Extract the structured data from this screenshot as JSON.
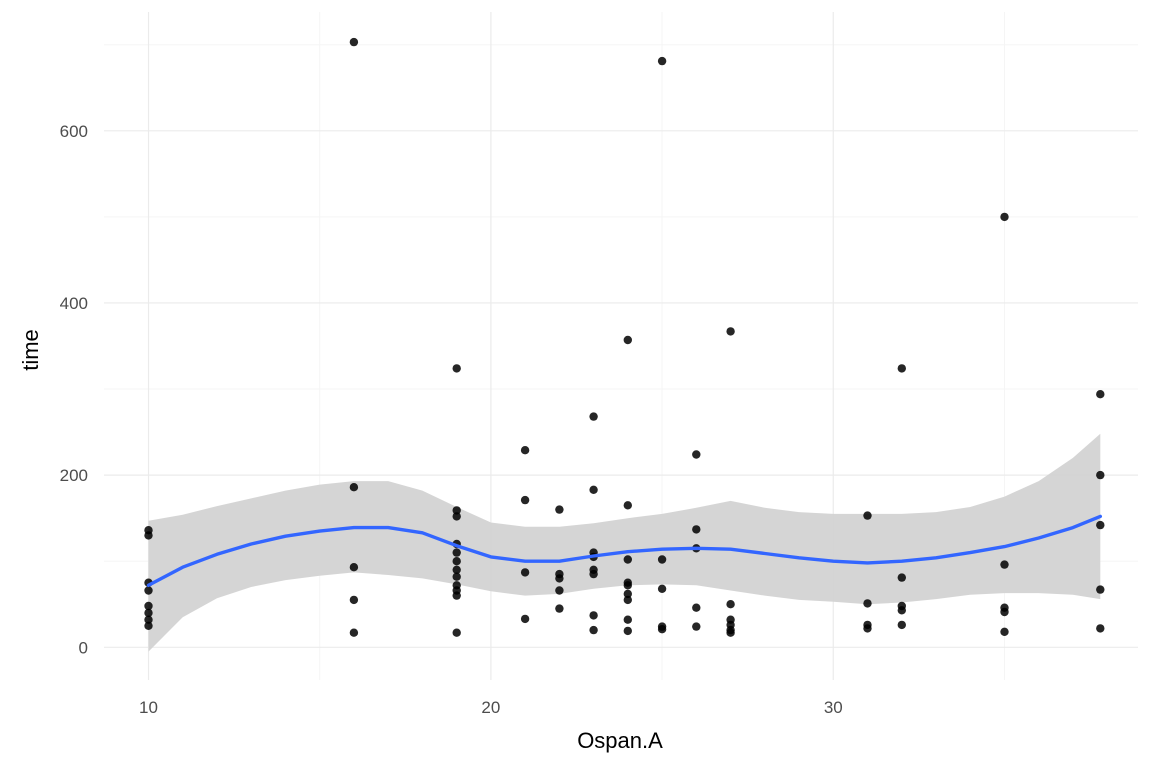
{
  "chart_data": {
    "type": "scatter",
    "title": "",
    "xlabel": "Ospan.A",
    "ylabel": "time",
    "xlim": [
      8.7,
      38.9
    ],
    "ylim": [
      -38,
      738
    ],
    "x_ticks": [
      10,
      20,
      30
    ],
    "y_ticks": [
      0,
      200,
      400,
      600
    ],
    "x_tick_labels": [
      "10",
      "20",
      "30"
    ],
    "y_tick_labels": [
      "0",
      "200",
      "400",
      "600"
    ],
    "grid": true,
    "legend": "none",
    "colors": {
      "points": "#000000",
      "smooth_line": "#3366ff",
      "ribbon": "#d3d3d3",
      "grid_major": "#ebebeb",
      "grid_minor": "#f5f5f5"
    },
    "points": [
      {
        "x": 10,
        "y": 136
      },
      {
        "x": 10,
        "y": 130
      },
      {
        "x": 10,
        "y": 75
      },
      {
        "x": 10,
        "y": 66
      },
      {
        "x": 10,
        "y": 48
      },
      {
        "x": 10,
        "y": 40
      },
      {
        "x": 10,
        "y": 32
      },
      {
        "x": 10,
        "y": 25
      },
      {
        "x": 16,
        "y": 703
      },
      {
        "x": 16,
        "y": 186
      },
      {
        "x": 16,
        "y": 93
      },
      {
        "x": 16,
        "y": 55
      },
      {
        "x": 16,
        "y": 17
      },
      {
        "x": 19,
        "y": 324
      },
      {
        "x": 19,
        "y": 159
      },
      {
        "x": 19,
        "y": 152
      },
      {
        "x": 19,
        "y": 120
      },
      {
        "x": 19,
        "y": 110
      },
      {
        "x": 19,
        "y": 100
      },
      {
        "x": 19,
        "y": 90
      },
      {
        "x": 19,
        "y": 82
      },
      {
        "x": 19,
        "y": 72
      },
      {
        "x": 19,
        "y": 66
      },
      {
        "x": 19,
        "y": 60
      },
      {
        "x": 19,
        "y": 17
      },
      {
        "x": 21,
        "y": 229
      },
      {
        "x": 21,
        "y": 171
      },
      {
        "x": 21,
        "y": 87
      },
      {
        "x": 21,
        "y": 33
      },
      {
        "x": 22,
        "y": 160
      },
      {
        "x": 22,
        "y": 85
      },
      {
        "x": 22,
        "y": 80
      },
      {
        "x": 22,
        "y": 66
      },
      {
        "x": 22,
        "y": 45
      },
      {
        "x": 23,
        "y": 268
      },
      {
        "x": 23,
        "y": 183
      },
      {
        "x": 23,
        "y": 110
      },
      {
        "x": 23,
        "y": 105
      },
      {
        "x": 23,
        "y": 90
      },
      {
        "x": 23,
        "y": 85
      },
      {
        "x": 23,
        "y": 37
      },
      {
        "x": 23,
        "y": 20
      },
      {
        "x": 24,
        "y": 357
      },
      {
        "x": 24,
        "y": 165
      },
      {
        "x": 24,
        "y": 102
      },
      {
        "x": 24,
        "y": 75
      },
      {
        "x": 24,
        "y": 72
      },
      {
        "x": 24,
        "y": 62
      },
      {
        "x": 24,
        "y": 55
      },
      {
        "x": 24,
        "y": 32
      },
      {
        "x": 24,
        "y": 19
      },
      {
        "x": 25,
        "y": 681
      },
      {
        "x": 25,
        "y": 102
      },
      {
        "x": 25,
        "y": 68
      },
      {
        "x": 25,
        "y": 24
      },
      {
        "x": 25,
        "y": 21
      },
      {
        "x": 26,
        "y": 224
      },
      {
        "x": 26,
        "y": 137
      },
      {
        "x": 26,
        "y": 115
      },
      {
        "x": 26,
        "y": 46
      },
      {
        "x": 26,
        "y": 24
      },
      {
        "x": 27,
        "y": 367
      },
      {
        "x": 27,
        "y": 50
      },
      {
        "x": 27,
        "y": 32
      },
      {
        "x": 27,
        "y": 26
      },
      {
        "x": 27,
        "y": 20
      },
      {
        "x": 27,
        "y": 17
      },
      {
        "x": 31,
        "y": 153
      },
      {
        "x": 31,
        "y": 51
      },
      {
        "x": 31,
        "y": 26
      },
      {
        "x": 31,
        "y": 22
      },
      {
        "x": 32,
        "y": 324
      },
      {
        "x": 32,
        "y": 81
      },
      {
        "x": 32,
        "y": 48
      },
      {
        "x": 32,
        "y": 43
      },
      {
        "x": 32,
        "y": 26
      },
      {
        "x": 35,
        "y": 500
      },
      {
        "x": 35,
        "y": 96
      },
      {
        "x": 35,
        "y": 46
      },
      {
        "x": 35,
        "y": 41
      },
      {
        "x": 35,
        "y": 18
      },
      {
        "x": 37.8,
        "y": 294
      },
      {
        "x": 37.8,
        "y": 200
      },
      {
        "x": 37.8,
        "y": 142
      },
      {
        "x": 37.8,
        "y": 67
      },
      {
        "x": 37.8,
        "y": 22
      }
    ],
    "smooth": {
      "x": [
        10,
        11,
        12,
        13,
        14,
        15,
        16,
        17,
        18,
        19,
        20,
        21,
        22,
        23,
        24,
        25,
        26,
        27,
        28,
        29,
        30,
        31,
        32,
        33,
        34,
        35,
        36,
        37,
        37.8
      ],
      "y": [
        72,
        93,
        108,
        120,
        129,
        135,
        139,
        139,
        133,
        118,
        105,
        100,
        100,
        106,
        111,
        114,
        115,
        114,
        109,
        104,
        100,
        98,
        100,
        104,
        110,
        117,
        127,
        139,
        152
      ],
      "ymin": [
        -5,
        35,
        57,
        70,
        78,
        83,
        87,
        84,
        80,
        73,
        65,
        60,
        62,
        68,
        72,
        73,
        72,
        66,
        60,
        55,
        53,
        50,
        52,
        56,
        61,
        63,
        63,
        61,
        56
      ],
      "ymax": [
        147,
        154,
        164,
        173,
        182,
        189,
        193,
        193,
        182,
        163,
        145,
        140,
        140,
        144,
        150,
        155,
        162,
        170,
        162,
        157,
        155,
        155,
        155,
        157,
        163,
        175,
        193,
        220,
        248
      ]
    }
  }
}
